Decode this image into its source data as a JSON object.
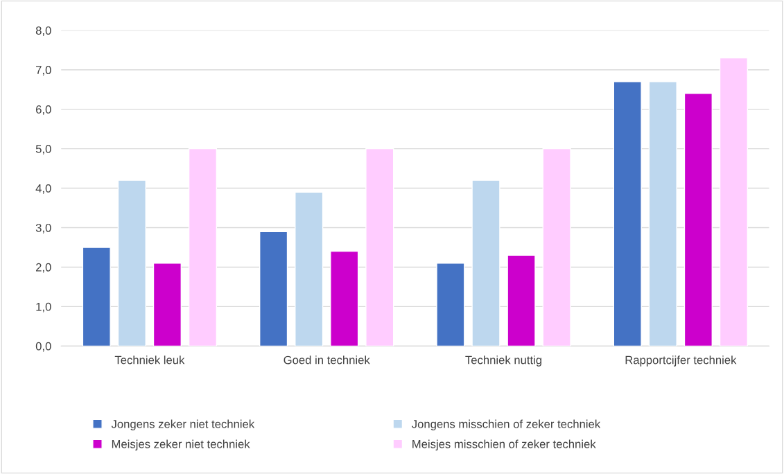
{
  "chart_data": {
    "type": "bar",
    "categories": [
      "Techniek leuk",
      "Goed in techniek",
      "Techniek nuttig",
      "Rapportcijfer techniek"
    ],
    "series": [
      {
        "name": "Jongens zeker niet techniek",
        "color": "#4472c4",
        "values": [
          2.5,
          2.9,
          2.1,
          6.7
        ]
      },
      {
        "name": "Jongens misschien of zeker techniek",
        "color": "#bdd7ee",
        "values": [
          4.2,
          3.9,
          4.2,
          6.7
        ]
      },
      {
        "name": "Meisjes zeker niet techniek",
        "color": "#cc00cc",
        "values": [
          2.1,
          2.4,
          2.3,
          6.4
        ]
      },
      {
        "name": "Meisjes misschien of zeker techniek",
        "color": "#ffccff",
        "values": [
          5.0,
          5.0,
          5.0,
          7.3
        ]
      }
    ],
    "ylim": [
      0,
      8
    ],
    "yticks": [
      {
        "value": 0,
        "label": "0,0"
      },
      {
        "value": 1,
        "label": "1,0"
      },
      {
        "value": 2,
        "label": "2,0"
      },
      {
        "value": 3,
        "label": "3,0"
      },
      {
        "value": 4,
        "label": "4,0"
      },
      {
        "value": 5,
        "label": "5,0"
      },
      {
        "value": 6,
        "label": "6,0"
      },
      {
        "value": 7,
        "label": "7,0"
      },
      {
        "value": 8,
        "label": "8,0"
      }
    ],
    "grid": "y",
    "legend": "bottom"
  }
}
